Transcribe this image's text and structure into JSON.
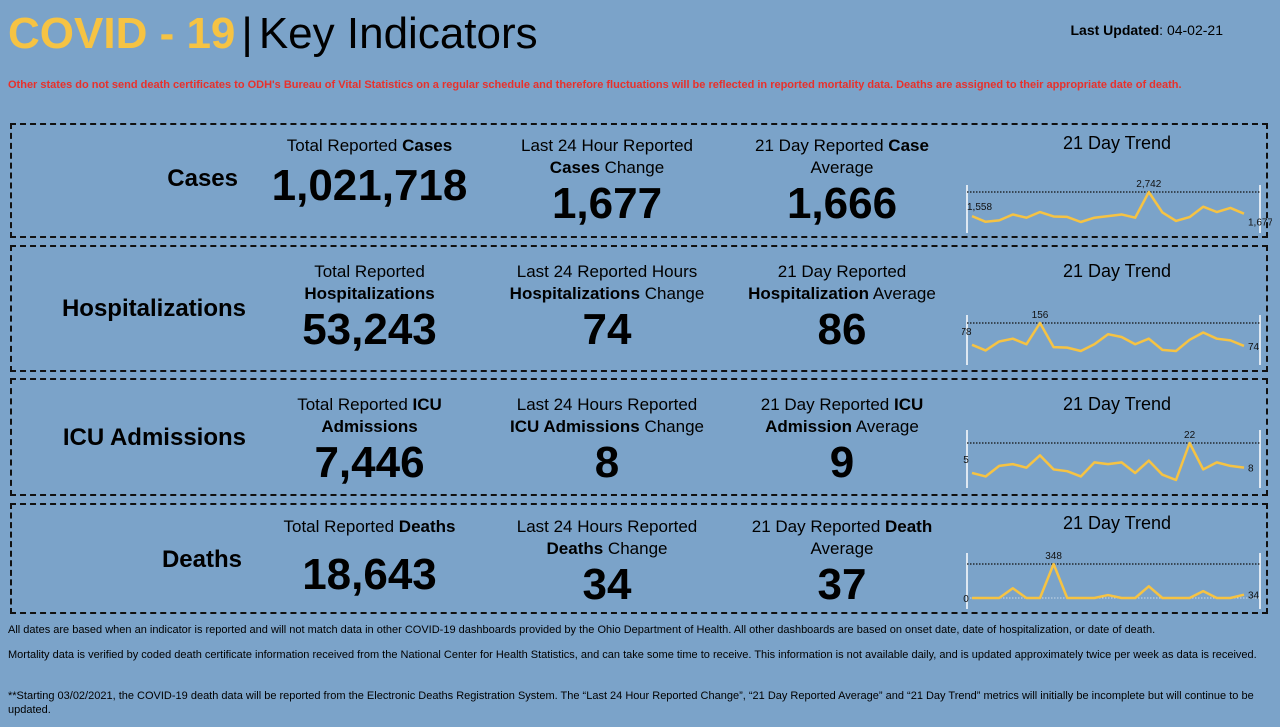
{
  "header": {
    "title_highlight": "COVID - 19",
    "title_sep": "|",
    "title_rest": "Key Indicators",
    "updated_label": "Last Updated",
    "updated_value": ": 04-02-21"
  },
  "warning": "Other states do not send death certificates to ODH's Bureau of Vital Statistics on a regular schedule and therefore fluctuations will be reflected in reported mortality data. Deaths are assigned to their appropriate date of death.",
  "colors": {
    "background": "#7ba3c9",
    "accent": "#f6c343",
    "warning": "#e8312b",
    "line": "#f6c343"
  },
  "rows": [
    {
      "label": "Cases",
      "total": {
        "pre": "Total Reported ",
        "bold": "Cases",
        "post": "",
        "value": "1,021,718"
      },
      "change": {
        "line1": "Last 24 Hour Reported",
        "bold": "Cases",
        "post": " Change",
        "value": "1,677"
      },
      "avg": {
        "pre": "21 Day Reported ",
        "bold": "Case",
        "post": "Average",
        "value": "1,666"
      },
      "trend_title": "21 Day Trend"
    },
    {
      "label": "Hospitalizations",
      "total": {
        "pre": "Total Reported",
        "bold": "Hospitalizations",
        "post": "",
        "value": "53,243"
      },
      "change": {
        "line1": "Last 24 Reported Hours",
        "bold": "Hospitalizations",
        "post": " Change",
        "value": "74"
      },
      "avg": {
        "pre": "21 Day Reported",
        "bold": "Hospitalization",
        "post": " Average",
        "value": "86"
      },
      "trend_title": "21 Day Trend"
    },
    {
      "label": "ICU Admissions",
      "total": {
        "pre": "Total Reported ",
        "bold": "ICU",
        "bold2": "Admissions",
        "value": "7,446"
      },
      "change": {
        "line1": "Last 24 Hours Reported",
        "bold": "ICU Admissions",
        "post": " Change",
        "value": "8"
      },
      "avg": {
        "pre": "21 Day Reported ",
        "bold": "ICU",
        "bold2": "Admission",
        "post": " Average",
        "value": "9"
      },
      "trend_title": "21 Day Trend"
    },
    {
      "label": "Deaths",
      "total": {
        "pre": "Total Reported ",
        "bold": "Deaths",
        "post": "",
        "value": "18,643"
      },
      "change": {
        "line1": "Last 24 Hours Reported",
        "bold": "Deaths",
        "post": " Change",
        "value": "34"
      },
      "avg": {
        "pre": "21 Day Reported ",
        "bold": "Death",
        "post": "Average",
        "value": "37"
      },
      "trend_title": "21 Day Trend"
    }
  ],
  "chart_data": [
    {
      "type": "line",
      "title": "21 Day Trend",
      "name": "Cases",
      "x": [
        1,
        2,
        3,
        4,
        5,
        6,
        7,
        8,
        9,
        10,
        11,
        12,
        13,
        14,
        15,
        16,
        17,
        18,
        19,
        20,
        21
      ],
      "values": [
        1558,
        1280,
        1350,
        1640,
        1480,
        1760,
        1540,
        1520,
        1270,
        1480,
        1560,
        1640,
        1480,
        2742,
        1740,
        1320,
        1510,
        2020,
        1760,
        1960,
        1677
      ],
      "labels": {
        "first": "1,558",
        "max": "2,742",
        "last": "1,677"
      },
      "reference_line": "max"
    },
    {
      "type": "line",
      "title": "21 Day Trend",
      "name": "Hospitalizations",
      "x": [
        1,
        2,
        3,
        4,
        5,
        6,
        7,
        8,
        9,
        10,
        11,
        12,
        13,
        14,
        15,
        16,
        17,
        18,
        19,
        20,
        21
      ],
      "values": [
        78,
        58,
        90,
        100,
        80,
        156,
        70,
        68,
        56,
        80,
        116,
        106,
        80,
        100,
        60,
        56,
        96,
        122,
        100,
        94,
        74
      ],
      "labels": {
        "first": "78",
        "max": "156",
        "last": "74"
      },
      "reference_line": "max"
    },
    {
      "type": "line",
      "title": "21 Day Trend",
      "name": "ICU Admissions",
      "x": [
        1,
        2,
        3,
        4,
        5,
        6,
        7,
        8,
        9,
        10,
        11,
        12,
        13,
        14,
        15,
        16,
        17,
        18,
        19,
        20,
        21
      ],
      "values": [
        5,
        3,
        9,
        10,
        8,
        15,
        7,
        6,
        3,
        11,
        10,
        11,
        5,
        12,
        4,
        1,
        22,
        7,
        11,
        9,
        8
      ],
      "labels": {
        "first": "5",
        "max": "22",
        "last": "8"
      },
      "reference_line": "max"
    },
    {
      "type": "line",
      "title": "21 Day Trend",
      "name": "Deaths",
      "x": [
        1,
        2,
        3,
        4,
        5,
        6,
        7,
        8,
        9,
        10,
        11,
        12,
        13,
        14,
        15,
        16,
        17,
        18,
        19,
        20,
        21
      ],
      "values": [
        0,
        0,
        0,
        100,
        0,
        0,
        348,
        0,
        0,
        0,
        30,
        0,
        0,
        120,
        0,
        0,
        0,
        70,
        0,
        0,
        34
      ],
      "labels": {
        "first": "0",
        "max": "348",
        "last": "34"
      },
      "reference_line": "max"
    }
  ],
  "footer": [
    "All dates are based when an indicator is reported and will not match data in other COVID-19 dashboards provided by the Ohio Department of Health. All other dashboards are based on onset date, date of hospitalization, or date of death.",
    "Mortality data is verified by coded death certificate information received from the National Center for Health Statistics, and can take some time to receive. This information is not available daily, and is updated approximately twice per week as data is received.",
    "**Starting 03/02/2021, the COVID-19 death data will be reported from the Electronic Deaths Registration System. The “Last 24 Hour Reported Change”, “21 Day Reported Average” and “21 Day Trend” metrics will initially be incomplete but will continue to be updated."
  ]
}
